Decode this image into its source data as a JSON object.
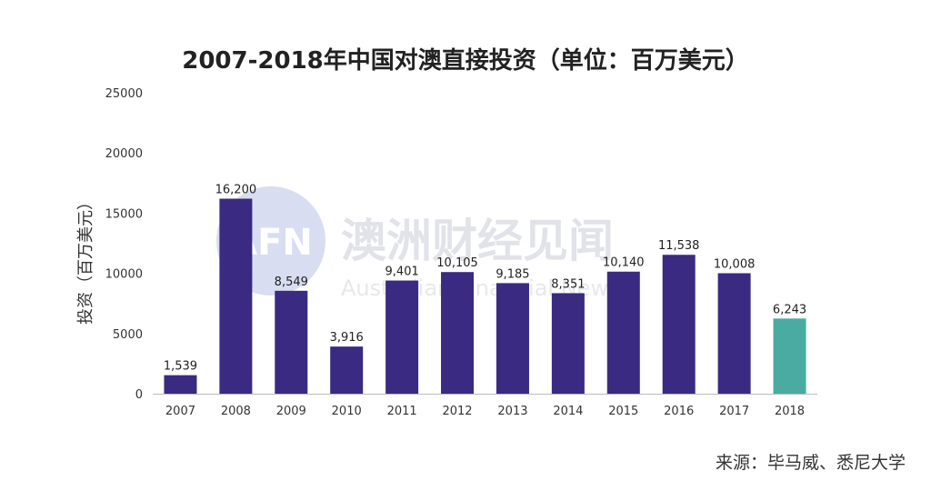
{
  "chart_data": {
    "type": "bar",
    "title": "2007-2018年中国对澳直接投资（单位：百万美元）",
    "ylabel": "投资（百万美元）",
    "xlabel": "",
    "categories": [
      "2007",
      "2008",
      "2009",
      "2010",
      "2011",
      "2012",
      "2013",
      "2014",
      "2015",
      "2016",
      "2017",
      "2018"
    ],
    "values": [
      1539,
      16200,
      8549,
      3916,
      9401,
      10105,
      9185,
      8351,
      10140,
      11538,
      10008,
      6243
    ],
    "value_labels": [
      "1,539",
      "16,200",
      "8,549",
      "3,916",
      "9,401",
      "10,105",
      "9,185",
      "8,351",
      "10,140",
      "11,538",
      "10,008",
      "6,243"
    ],
    "ylim": [
      0,
      25000
    ],
    "yticks": [
      "0",
      "5000",
      "10000",
      "15000",
      "20000",
      "25000"
    ],
    "grid": false,
    "colors": {
      "bar": "#3a2a82",
      "highlight": "#49aba1",
      "highlight_index": 11
    }
  },
  "watermark": {
    "logo": "AFN",
    "text": "澳洲财经见闻",
    "subtext": "Australian Financial News"
  },
  "source": "来源：毕马威、悉尼大学"
}
